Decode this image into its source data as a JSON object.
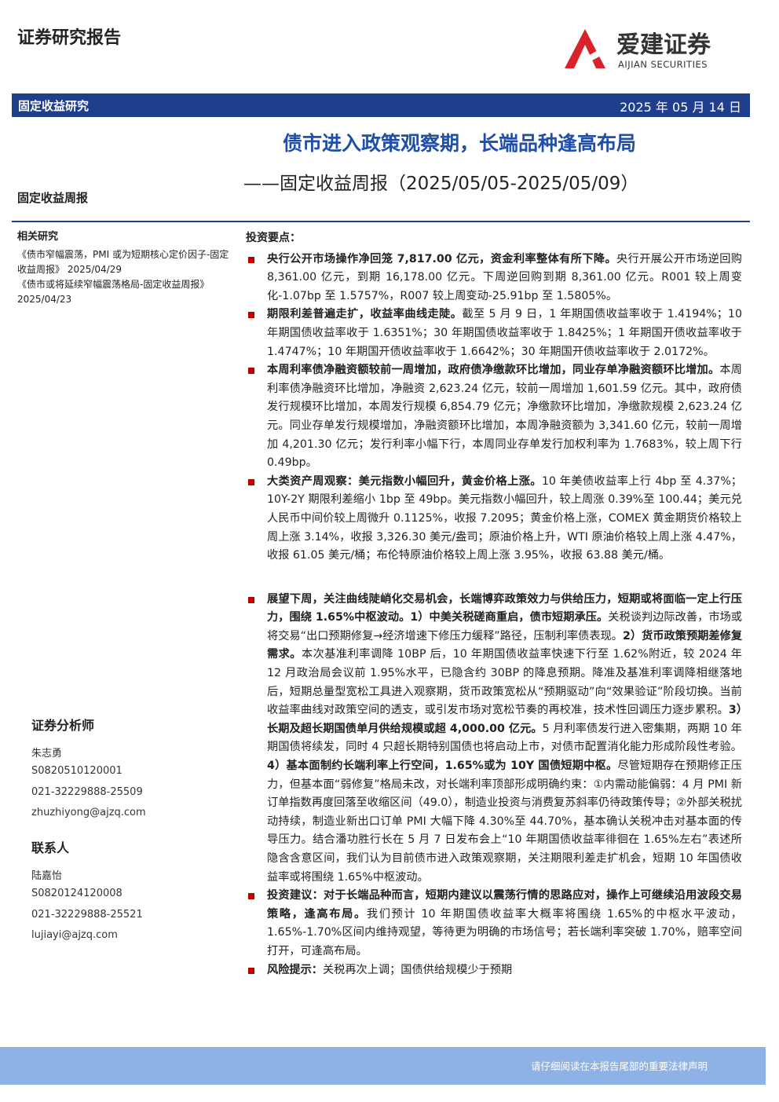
{
  "header": {
    "report_type": "证券研究报告",
    "logo_name": "爱建证券",
    "logo_en": "AIJIAN SECURITIES",
    "section": "固定收益研究",
    "date": "2025 年 05 月 14 日"
  },
  "title": "债市进入政策观察期，长端品种逢高布局",
  "subtitle": "——固定收益周报（2025/05/05-2025/05/09）",
  "category": "固定收益周报",
  "related": {
    "heading": "相关研究",
    "items": [
      "《债市窄幅震荡，PMI 或为短期核心定价因子-固定收益周报》 2025/04/29",
      "《债市或将延续窄幅震荡格局-固定收益周报》2025/04/23"
    ]
  },
  "analysts": {
    "heading": "证券分析师",
    "lines": [
      "朱志勇",
      "S0820510120001",
      "021-32229888-25509",
      "zhuzhiyong@ajzq.com"
    ]
  },
  "contacts": {
    "heading": "联系人",
    "lines": [
      "陆嘉怡",
      "S0820124120008",
      "021-32229888-25521",
      "lujiayi@ajzq.com"
    ]
  },
  "summary": {
    "heading": "投资要点：",
    "bullets": [
      [
        {
          "text": "央行公开市场操作净回笼 7,817.00 亿元，资金利率整体有所下降。",
          "bold": true
        },
        {
          "text": "央行开展公开市场逆回购 8,361.00 亿元，到期 16,178.00 亿元。下周逆回购到期 8,361.00 亿元。R001 较上周变化-1.07bp 至 1.5757%，R007 较上周变动-25.91bp 至 1.5805%。",
          "bold": false
        }
      ],
      [
        {
          "text": "期限利差普遍走扩，收益率曲线走陡。",
          "bold": true
        },
        {
          "text": "截至 5 月 9 日，1 年期国债收益率收于 1.4194%；10 年期国债收益率收于 1.6351%；30 年期国债收益率收于 1.8425%；1 年期国开债收益率收于 1.4747%；10 年期国开债收益率收于 1.6642%；30 年期国开债收益率收于 2.0172%。",
          "bold": false
        }
      ],
      [
        {
          "text": "本周利率债净融资额较前一周增加，政府债净缴款环比增加，同业存单净融资额环比增加。",
          "bold": true
        },
        {
          "text": "本周利率债净融资环比增加，净融资 2,623.24 亿元，较前一周增加 1,601.59 亿元。其中，政府债发行规模环比增加，本周发行规模 6,854.79 亿元；净缴款环比增加，净缴款规模 2,623.24 亿元。同业存单发行规模增加，净融资额环比增加，本周净融资额为 3,341.60 亿元，较前一周增加 4,201.30 亿元；发行利率小幅下行，本周同业存单发行加权利率为 1.7683%，较上周下行 0.49bp。",
          "bold": false
        }
      ],
      [
        {
          "text": "大类资产周观察：美元指数小幅回升，黄金价格上涨。",
          "bold": true
        },
        {
          "text": "10 年美债收益率上行 4bp 至 4.37%；10Y-2Y 期限利差缩小 1bp 至 49bp。美元指数小幅回升，较上周涨 0.39%至 100.44；美元兑人民币中间价较上周微升 0.1125%，收报 7.2095；黄金价格上涨，COMEX 黄金期货价格较上周上涨 3.14%，收报 3,326.30 美元/盎司；原油价格上升，WTI 原油价格较上周上涨 4.47%，收报 61.05 美元/桶；布伦特原油价格较上周上涨 3.95%，收报 63.88 美元/桶。",
          "bold": false
        }
      ],
      [
        {
          "text": "展望下周，关注曲线陡峭化交易机会，长端博弈政策效力与供给压力，短期或将面临一定上行压力，围绕 1.65%中枢波动。1）中美关税磋商重启，债市短期承压。",
          "bold": true
        },
        {
          "text": "关税谈判边际改善，市场或将交易“出口预期修复→经济增速下修压力缓释”路径，压制利率债表现。",
          "bold": false
        },
        {
          "text": "2）货币政策预期差修复需求。",
          "bold": true
        },
        {
          "text": "本次基准利率调降 10BP 后，10 年期国债收益率快速下行至 1.62%附近，较 2024 年 12 月政治局会议前 1.95%水平，已隐含约 30BP 的降息预期。降准及基准利率调降相继落地后，短期总量型宽松工具进入观察期，货币政策宽松从“预期驱动”向“效果验证”阶段切换。当前收益率曲线对政策空间的透支，或引发市场对宽松节奏的再校准，技术性回调压力逐步累积。",
          "bold": false
        },
        {
          "text": "3）长期及超长期国债单月供给规模或超 4,000.00 亿元。",
          "bold": true
        },
        {
          "text": "5 月利率债发行进入密集期，两期 10 年期国债将续发，同时 4 只超长期特别国债也将启动上市，对债市配置消化能力形成阶段性考验。",
          "bold": false
        },
        {
          "text": "4）基本面制约长端利率上行空间，1.65%或为 10Y 国债短期中枢。",
          "bold": true
        },
        {
          "text": "尽管短期存在预期修正压力，但基本面“弱修复”格局未改，对长端利率顶部形成明确约束：①内需动能偏弱：4 月 PMI 新订单指数再度回落至收缩区间（49.0），制造业投资与消费复苏斜率仍待政策传导；②外部关税扰动持续，制造业新出口订单 PMI 大幅下降 4.30%至 44.70%，基本确认关税冲击对基本面的传导压力。结合潘功胜行长在 5 月 7 日发布会上“10 年期国债收益率徘徊在 1.65%左右”表述所隐含含意区间，我们认为目前债市进入政策观察期，关注期限利差走扩机会，短期 10 年国债收益率或将围绕 1.65%中枢波动。",
          "bold": false
        }
      ],
      [
        {
          "text": "投资建议：对于长端品种而言，短期内建议以震荡行情的思路应对，操作上可继续沿用波段交易策略，逢高布局。",
          "bold": true
        },
        {
          "text": "我们预计 10 年期国债收益率大概率将围绕 1.65%的中枢水平波动，1.65%-1.70%区间内维持观望，等待更为明确的市场信号；若长端利率突破 1.70%，赔率空间打开，可逢高布局。",
          "bold": false
        }
      ],
      [
        {
          "text": "风险提示：",
          "bold": true
        },
        {
          "text": "关税再次上调；国债供给规模少于预期",
          "bold": false
        }
      ]
    ]
  },
  "footer": "请仔细阅读在本报告尾部的重要法律声明"
}
